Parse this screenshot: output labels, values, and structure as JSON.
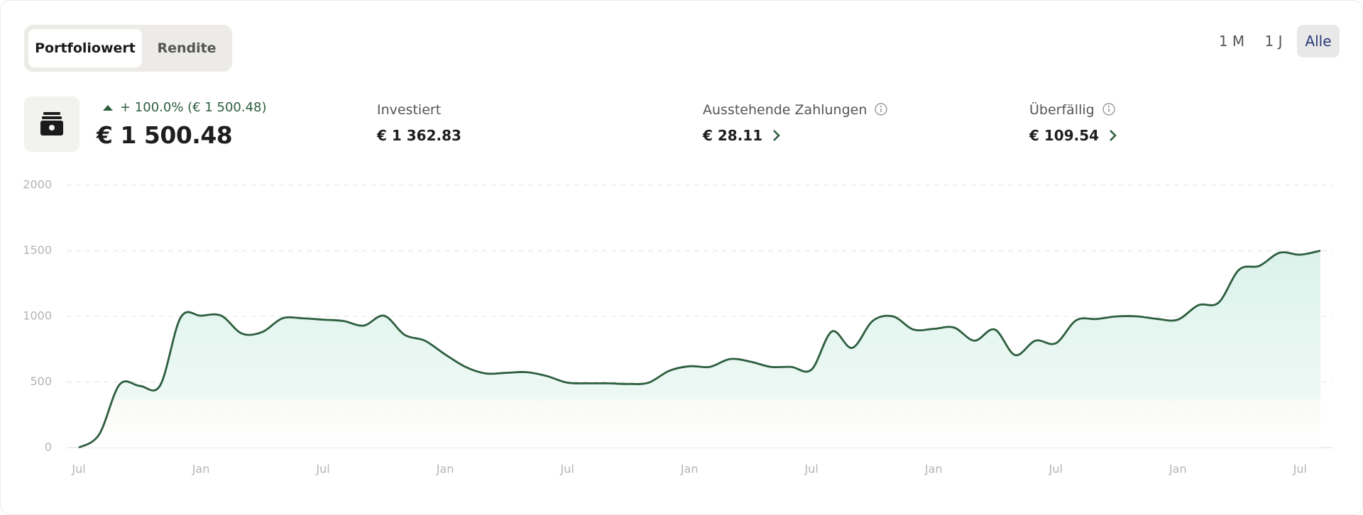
{
  "tabs": [
    "Portfoliowert",
    "Rendite"
  ],
  "ranges": [
    "1 M",
    "1 J",
    "Alle"
  ],
  "portfolio": {
    "change": "+ 100.0% (€ 1 500.48)",
    "value": "€ 1 500.48"
  },
  "stats": [
    {
      "label": "Investiert",
      "value": "€ 1 362.83"
    },
    {
      "label": "Ausstehende Zahlungen",
      "value": "€ 28.11"
    },
    {
      "label": "Überfällig",
      "value": "€ 109.54"
    }
  ],
  "chart_data": {
    "type": "line",
    "categories": [
      "Jul",
      null,
      null,
      null,
      null,
      null,
      "Jan",
      null,
      null,
      null,
      null,
      null,
      "Jul",
      null,
      null,
      null,
      null,
      null,
      "Jan",
      null,
      null,
      null,
      null,
      null,
      "Jul",
      null,
      null,
      null,
      null,
      null,
      "Jan",
      null,
      null,
      null,
      null,
      null,
      "Jul",
      null,
      null,
      null,
      null,
      null,
      "Jan",
      null,
      null,
      null,
      null,
      null,
      "Jul",
      null,
      null,
      null,
      null,
      null,
      "Jan",
      null,
      null,
      null,
      null,
      null,
      "Jul",
      null
    ],
    "series": [
      {
        "color": "#2d5e3e",
        "values": [
          0,
          100,
          480,
          470,
          475,
          990,
          1005,
          1005,
          870,
          880,
          985,
          985,
          975,
          965,
          930,
          1005,
          860,
          815,
          710,
          615,
          565,
          570,
          575,
          545,
          495,
          490,
          490,
          485,
          495,
          585,
          620,
          615,
          675,
          655,
          615,
          615,
          595,
          885,
          760,
          965,
          1000,
          900,
          905,
          915,
          815,
          900,
          705,
          815,
          795,
          970,
          980,
          1000,
          1000,
          980,
          975,
          1085,
          1105,
          1355,
          1385,
          1485,
          1470,
          1500
        ]
      }
    ],
    "ylim": [
      0,
      2000
    ],
    "yticks": [
      0,
      500,
      1000,
      1500,
      2000
    ],
    "grid": true
  }
}
